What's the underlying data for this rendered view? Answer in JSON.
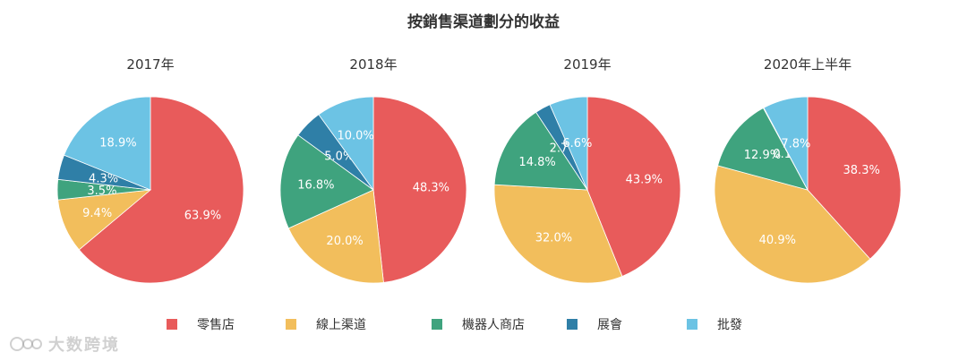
{
  "chart_data": {
    "type": "pie",
    "title": "按銷售渠道劃分的收益",
    "categories": [
      "零售店",
      "線上渠道",
      "機器人商店",
      "展會",
      "批發"
    ],
    "colors": [
      "#E85B5B",
      "#F2BE5C",
      "#3FA37E",
      "#2F7FA7",
      "#6CC3E4"
    ],
    "legend_position": "bottom",
    "pies": [
      {
        "title": "2017年",
        "values": [
          63.9,
          9.4,
          3.5,
          4.3,
          18.9
        ],
        "labels": [
          "63.9%",
          "9.4%",
          "3.5%",
          "4.3%",
          "18.9%"
        ]
      },
      {
        "title": "2018年",
        "values": [
          48.3,
          20.0,
          16.8,
          5.0,
          10.0
        ],
        "labels": [
          "48.3%",
          "20.0%",
          "16.8%",
          "5.0%",
          "10.0%"
        ]
      },
      {
        "title": "2019年",
        "values": [
          43.9,
          32.0,
          14.8,
          2.7,
          6.6
        ],
        "labels": [
          "43.9%",
          "32.0%",
          "14.8%",
          "2.7%",
          "6.6%"
        ]
      },
      {
        "title": "2020年上半年",
        "values": [
          38.3,
          40.9,
          12.9,
          0.1,
          7.8
        ],
        "labels": [
          "38.3%",
          "40.9%",
          "12.9%",
          "0.1%",
          "7.8%"
        ]
      }
    ]
  },
  "watermark": "大数跨境"
}
